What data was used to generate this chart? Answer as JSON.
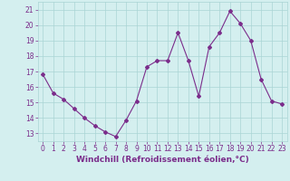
{
  "x": [
    0,
    1,
    2,
    3,
    4,
    5,
    6,
    7,
    8,
    9,
    10,
    11,
    12,
    13,
    14,
    15,
    16,
    17,
    18,
    19,
    20,
    21,
    22,
    23
  ],
  "y": [
    16.8,
    15.6,
    15.2,
    14.6,
    14.0,
    13.5,
    13.1,
    12.8,
    13.85,
    15.1,
    17.3,
    17.7,
    17.7,
    19.5,
    17.7,
    15.4,
    18.6,
    19.5,
    20.9,
    20.1,
    19.0,
    16.5,
    15.1,
    14.9
  ],
  "line_color": "#7b2d8b",
  "marker": "D",
  "marker_size": 2,
  "bg_color": "#d4efef",
  "grid_color": "#aad4d4",
  "xlabel": "Windchill (Refroidissement éolien,°C)",
  "xlim": [
    -0.5,
    23.5
  ],
  "ylim": [
    12.5,
    21.5
  ],
  "yticks": [
    13,
    14,
    15,
    16,
    17,
    18,
    19,
    20,
    21
  ],
  "xticks": [
    0,
    1,
    2,
    3,
    4,
    5,
    6,
    7,
    8,
    9,
    10,
    11,
    12,
    13,
    14,
    15,
    16,
    17,
    18,
    19,
    20,
    21,
    22,
    23
  ],
  "tick_color": "#7b2d8b",
  "label_color": "#7b2d8b",
  "label_fontsize": 6.5,
  "tick_fontsize": 5.5
}
